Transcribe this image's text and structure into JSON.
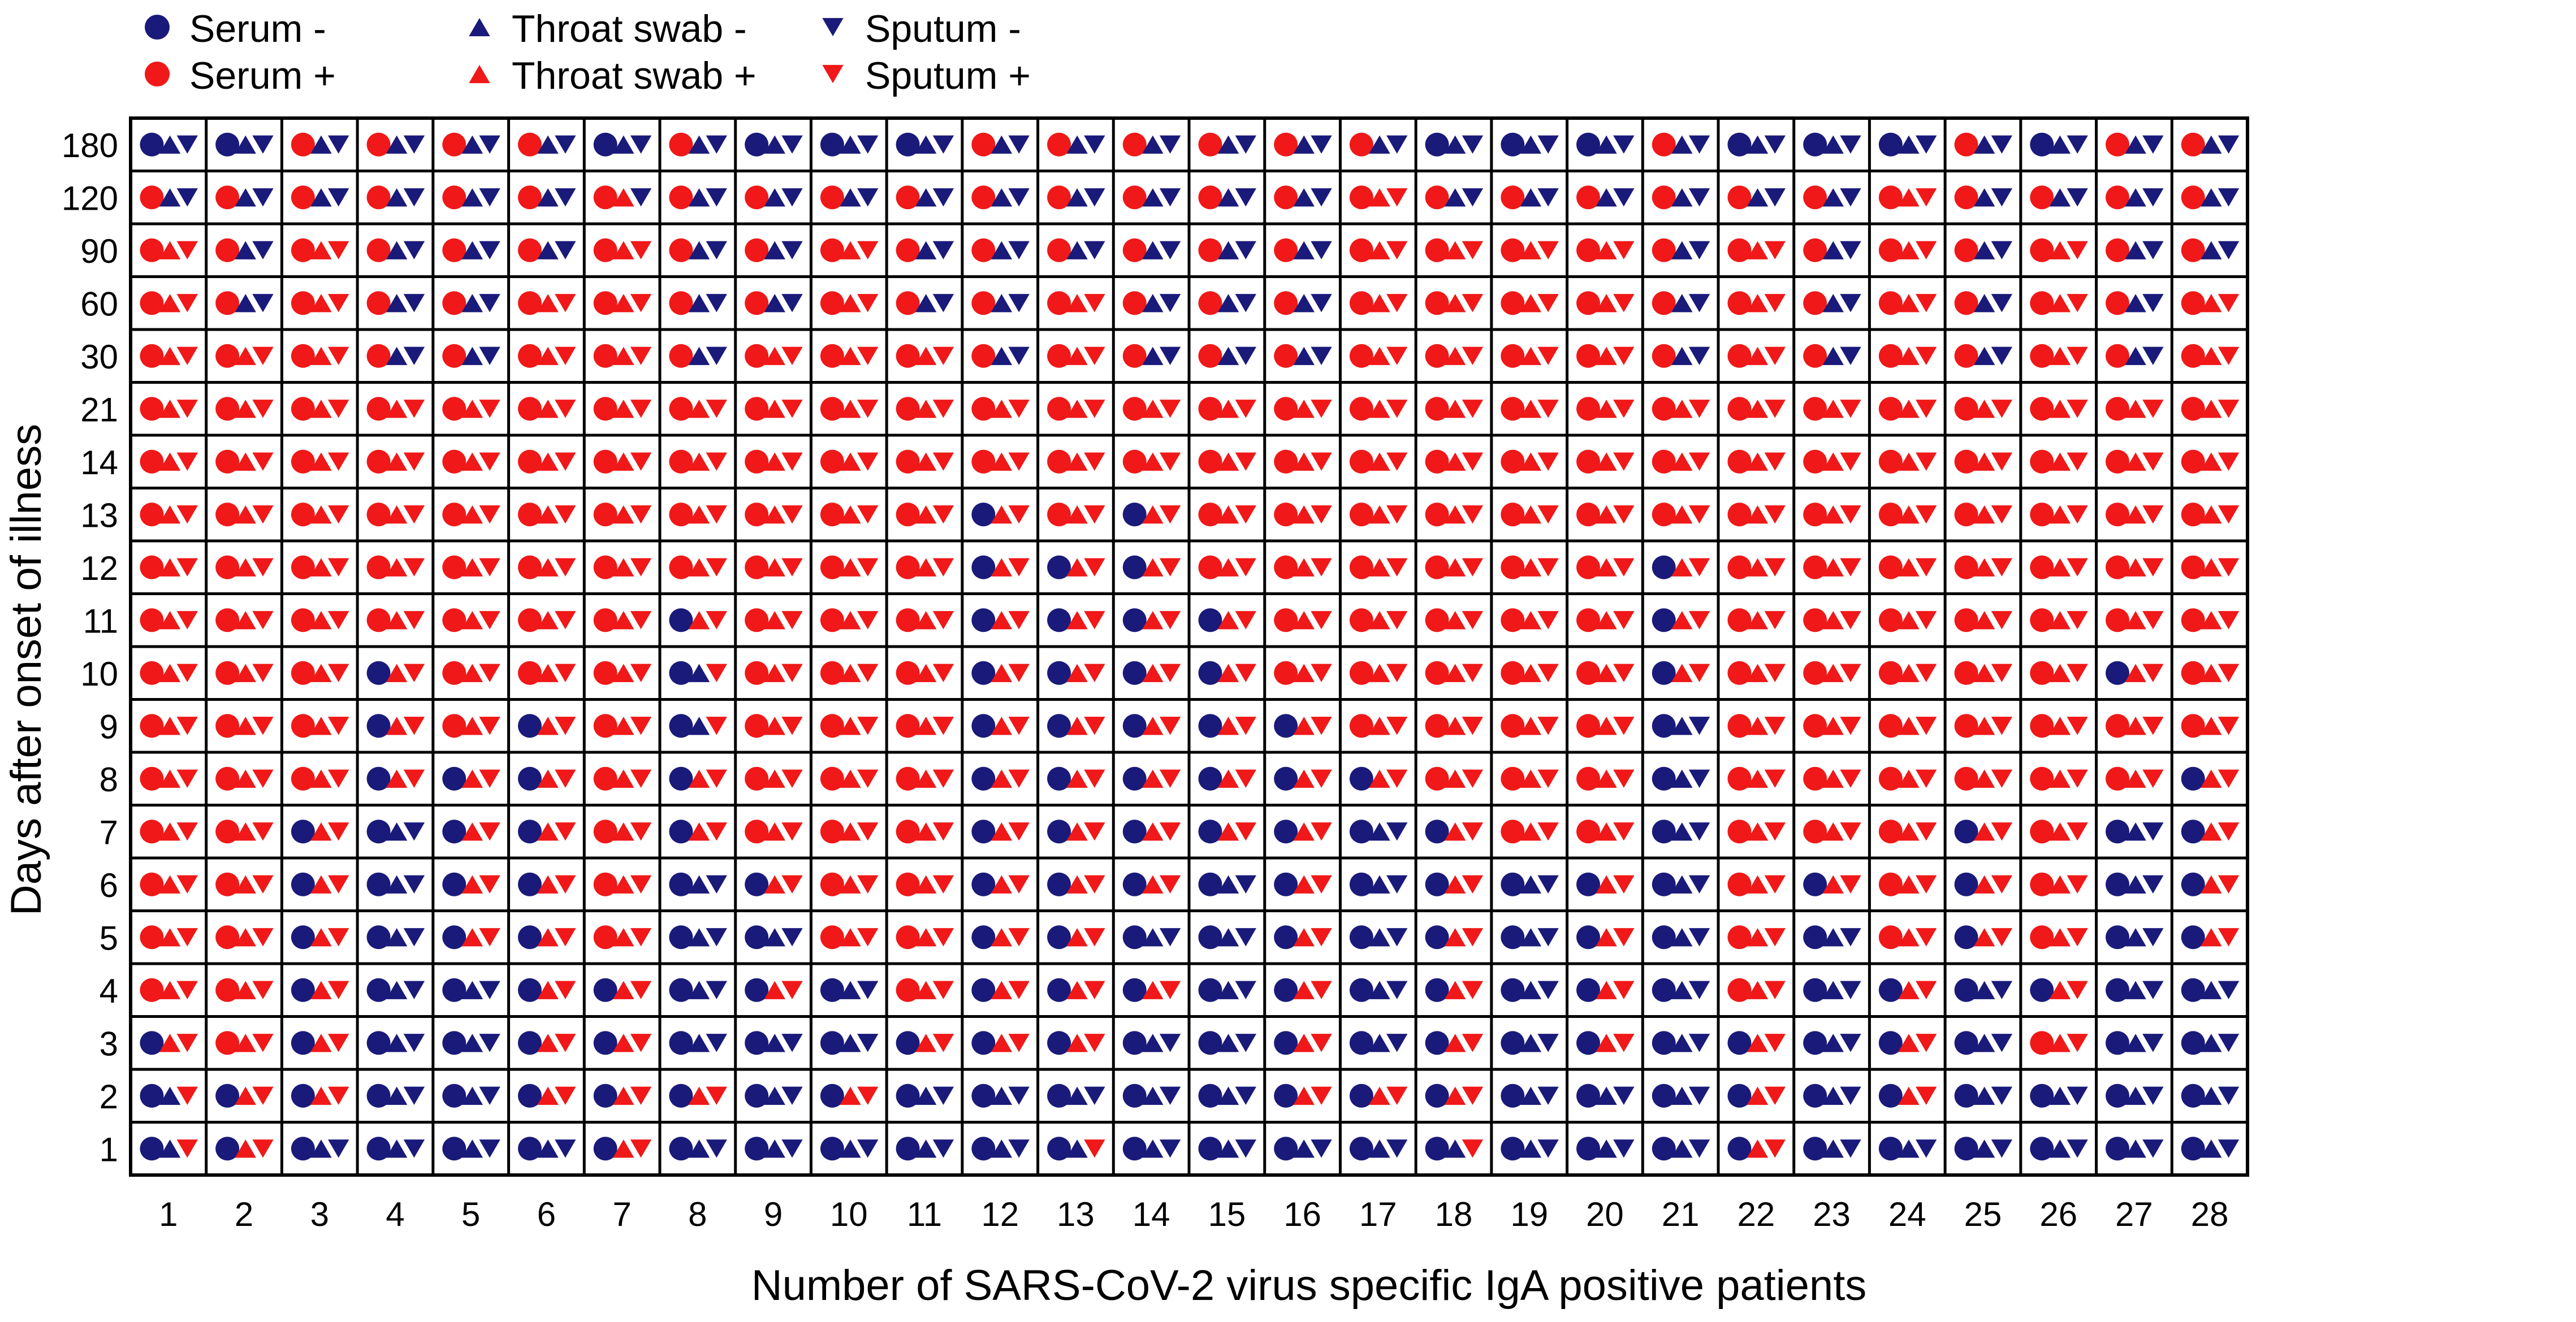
{
  "colors": {
    "negative": "#1a1a7a",
    "positive": "#f01818",
    "border": "#000000",
    "text": "#000000"
  },
  "legend": {
    "position": "top-left",
    "items": [
      {
        "label": "Serum -",
        "marker": "circle",
        "sign": "negative"
      },
      {
        "label": "Throat swab -",
        "marker": "triangle-up",
        "sign": "negative"
      },
      {
        "label": "Sputum -",
        "marker": "triangle-down",
        "sign": "negative"
      },
      {
        "label": "Serum +",
        "marker": "circle",
        "sign": "positive"
      },
      {
        "label": "Throat swab +",
        "marker": "triangle-up",
        "sign": "positive"
      },
      {
        "label": "Sputum +",
        "marker": "triangle-down",
        "sign": "positive"
      }
    ]
  },
  "chart_data": {
    "type": "heatmap",
    "xlabel": "Number of  SARS-CoV-2 virus specific IgA positive patients",
    "ylabel": "Days after onset of illness",
    "x_categories": [
      "1",
      "2",
      "3",
      "4",
      "5",
      "6",
      "7",
      "8",
      "9",
      "10",
      "11",
      "12",
      "13",
      "14",
      "15",
      "16",
      "17",
      "18",
      "19",
      "20",
      "21",
      "22",
      "23",
      "24",
      "25",
      "26",
      "27",
      "28"
    ],
    "y_categories": [
      "180",
      "120",
      "90",
      "60",
      "30",
      "21",
      "14",
      "13",
      "12",
      "11",
      "10",
      "9",
      "8",
      "7",
      "6",
      "5",
      "4",
      "3",
      "2",
      "1"
    ],
    "grid": true,
    "cell_encoding": "three characters per cell: serum, throat swab, sputum; + = positive (red), - = negative (blue)",
    "rows": {
      "180": [
        "---",
        "---",
        "+--",
        "+--",
        "+--",
        "+--",
        "---",
        "+--",
        "---",
        "---",
        "---",
        "+--",
        "+--",
        "+--",
        "+--",
        "+--",
        "+--",
        "---",
        "---",
        "---",
        "+--",
        "---",
        "---",
        "---",
        "+--",
        "---",
        "+--",
        "+--"
      ],
      "120": [
        "+--",
        "+--",
        "+--",
        "+--",
        "+--",
        "+--",
        "++-",
        "+--",
        "+--",
        "+--",
        "+--",
        "+--",
        "+--",
        "+--",
        "+--",
        "+--",
        "+++",
        "+--",
        "+--",
        "+--",
        "+--",
        "+--",
        "+--",
        "+++",
        "+--",
        "+--",
        "+--",
        "+--"
      ],
      "90": [
        "+++",
        "+--",
        "+++",
        "+--",
        "+--",
        "+--",
        "+++",
        "+--",
        "+--",
        "+++",
        "+--",
        "+--",
        "+--",
        "+--",
        "+--",
        "+--",
        "+++",
        "+++",
        "+++",
        "+++",
        "+--",
        "+++",
        "+--",
        "+++",
        "+--",
        "+++",
        "+--",
        "+--"
      ],
      "60": [
        "+++",
        "+--",
        "+++",
        "+--",
        "+--",
        "+++",
        "+++",
        "+--",
        "+--",
        "+++",
        "+--",
        "+--",
        "+++",
        "+--",
        "+--",
        "+--",
        "+++",
        "+++",
        "+++",
        "+++",
        "+--",
        "+++",
        "+--",
        "+++",
        "+--",
        "+++",
        "+--",
        "+++"
      ],
      "30": [
        "+++",
        "+++",
        "+++",
        "+--",
        "+--",
        "+++",
        "+++",
        "+--",
        "+++",
        "+++",
        "+++",
        "+--",
        "+++",
        "+--",
        "+--",
        "+--",
        "+++",
        "+++",
        "+++",
        "+++",
        "+--",
        "+++",
        "+--",
        "+++",
        "+--",
        "+++",
        "+--",
        "+++"
      ],
      "21": [
        "+++",
        "+++",
        "+++",
        "+++",
        "+++",
        "+++",
        "+++",
        "+++",
        "+++",
        "+++",
        "+++",
        "+++",
        "+++",
        "+++",
        "+++",
        "+++",
        "+++",
        "+++",
        "+++",
        "+++",
        "+++",
        "+++",
        "+++",
        "+++",
        "+++",
        "+++",
        "+++",
        "+++"
      ],
      "14": [
        "+++",
        "+++",
        "+++",
        "+++",
        "+++",
        "+++",
        "+++",
        "+++",
        "+++",
        "+++",
        "+++",
        "+++",
        "+++",
        "+++",
        "+++",
        "+++",
        "+++",
        "+++",
        "+++",
        "+++",
        "+++",
        "+++",
        "+++",
        "+++",
        "+++",
        "+++",
        "+++",
        "+++"
      ],
      "13": [
        "+++",
        "+++",
        "+++",
        "+++",
        "+++",
        "+++",
        "+++",
        "+++",
        "+++",
        "+++",
        "+++",
        "-++",
        "+++",
        "-++",
        "+++",
        "+++",
        "+++",
        "+++",
        "+++",
        "+++",
        "+++",
        "+++",
        "+++",
        "+++",
        "+++",
        "+++",
        "+++",
        "+++"
      ],
      "12": [
        "+++",
        "+++",
        "+++",
        "+++",
        "+++",
        "+++",
        "+++",
        "+++",
        "+++",
        "+++",
        "+++",
        "-++",
        "-++",
        "-++",
        "+++",
        "+++",
        "+++",
        "+++",
        "+++",
        "+++",
        "-++",
        "+++",
        "+++",
        "+++",
        "+++",
        "+++",
        "+++",
        "+++"
      ],
      "11": [
        "+++",
        "+++",
        "+++",
        "+++",
        "+++",
        "+++",
        "+++",
        "-++",
        "+++",
        "+++",
        "+++",
        "-++",
        "-++",
        "-++",
        "-++",
        "+++",
        "+++",
        "+++",
        "+++",
        "+++",
        "-++",
        "+++",
        "+++",
        "+++",
        "+++",
        "+++",
        "+++",
        "+++"
      ],
      "10": [
        "+++",
        "+++",
        "+++",
        "-++",
        "+++",
        "+++",
        "+++",
        "--+",
        "+++",
        "+++",
        "+++",
        "-++",
        "-++",
        "-++",
        "-++",
        "+++",
        "+++",
        "+++",
        "+++",
        "+++",
        "-++",
        "+++",
        "+++",
        "+++",
        "+++",
        "+++",
        "-++",
        "+++"
      ],
      "9": [
        "+++",
        "+++",
        "+++",
        "-++",
        "+++",
        "-++",
        "+++",
        "--+",
        "+++",
        "+++",
        "+++",
        "-++",
        "-++",
        "-++",
        "-++",
        "-++",
        "+++",
        "+++",
        "+++",
        "+++",
        "---",
        "+++",
        "+++",
        "+++",
        "+++",
        "+++",
        "+++",
        "+++"
      ],
      "8": [
        "+++",
        "+++",
        "+++",
        "-++",
        "-++",
        "-++",
        "+++",
        "-++",
        "+++",
        "+++",
        "+++",
        "-++",
        "-++",
        "-++",
        "-++",
        "-++",
        "-++",
        "+++",
        "+++",
        "+++",
        "---",
        "+++",
        "+++",
        "+++",
        "+++",
        "+++",
        "+++",
        "-++"
      ],
      "7": [
        "+++",
        "+++",
        "-++",
        "---",
        "-++",
        "-++",
        "+++",
        "-++",
        "+++",
        "+++",
        "+++",
        "-++",
        "-++",
        "-++",
        "-++",
        "-++",
        "---",
        "-++",
        "+++",
        "+++",
        "---",
        "+++",
        "+++",
        "+++",
        "-++",
        "+++",
        "---",
        "-++"
      ],
      "6": [
        "+++",
        "+++",
        "-++",
        "---",
        "-++",
        "-++",
        "+++",
        "---",
        "-++",
        "+++",
        "+++",
        "-++",
        "-++",
        "-++",
        "---",
        "-++",
        "---",
        "-++",
        "---",
        "-++",
        "---",
        "+++",
        "-++",
        "+++",
        "-++",
        "+++",
        "---",
        "-++"
      ],
      "5": [
        "+++",
        "+++",
        "-++",
        "---",
        "-++",
        "-++",
        "+++",
        "---",
        "---",
        "+++",
        "+++",
        "-++",
        "-++",
        "---",
        "---",
        "-++",
        "---",
        "-++",
        "---",
        "-++",
        "---",
        "+++",
        "---",
        "+++",
        "-++",
        "+++",
        "---",
        "-++"
      ],
      "4": [
        "+++",
        "+++",
        "-++",
        "---",
        "---",
        "-++",
        "-++",
        "---",
        "-++",
        "---",
        "+++",
        "-++",
        "-++",
        "-++",
        "---",
        "-++",
        "---",
        "-++",
        "---",
        "-++",
        "---",
        "+++",
        "---",
        "-++",
        "---",
        "-++",
        "---",
        "---"
      ],
      "3": [
        "-++",
        "+++",
        "-++",
        "---",
        "---",
        "-++",
        "-++",
        "---",
        "---",
        "---",
        "-++",
        "-++",
        "-++",
        "---",
        "---",
        "-++",
        "---",
        "-++",
        "---",
        "-++",
        "---",
        "-++",
        "---",
        "-++",
        "---",
        "+++",
        "---",
        "---"
      ],
      "2": [
        "--+",
        "-++",
        "-++",
        "---",
        "---",
        "-++",
        "-++",
        "-++",
        "---",
        "-++",
        "---",
        "---",
        "---",
        "---",
        "---",
        "-++",
        "-++",
        "-++",
        "---",
        "---",
        "---",
        "-++",
        "---",
        "-++",
        "---",
        "---",
        "---",
        "---"
      ],
      "1": [
        "--+",
        "-++",
        "---",
        "---",
        "---",
        "---",
        "-++",
        "---",
        "---",
        "---",
        "---",
        "---",
        "--+",
        "---",
        "---",
        "---",
        "---",
        "--+",
        "---",
        "---",
        "---",
        "-++",
        "---",
        "---",
        "---",
        "---",
        "---",
        "---"
      ]
    }
  }
}
